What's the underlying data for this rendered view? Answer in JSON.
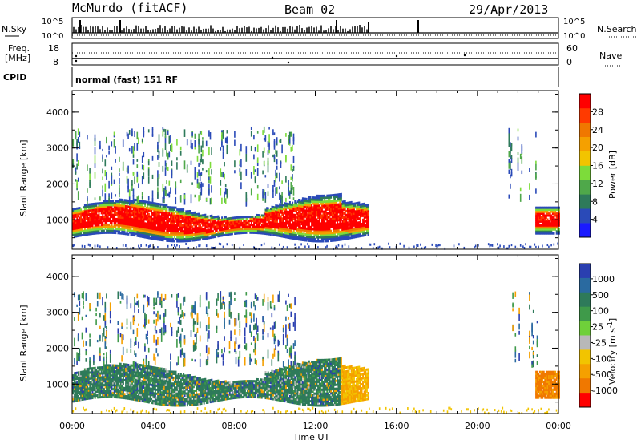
{
  "header": {
    "station": "McMurdo (fitACF)",
    "beam": "Beam 02",
    "date": "29/Apr/2013"
  },
  "panels": {
    "nsky": {
      "left_label": "N.Sky",
      "right_label": "N.Search",
      "tick_top": "10^5",
      "tick_bottom": "10^0"
    },
    "freq": {
      "left_label_1": "Freq.",
      "left_label_2": "[MHz]",
      "right_label": "Nave",
      "left_ticks": [
        "18",
        "8"
      ],
      "right_ticks": [
        "60",
        "0"
      ]
    },
    "cpid": {
      "label": "CPID",
      "mode": "normal (fast) 151 RF"
    }
  },
  "chart_data": [
    {
      "type": "heatmap",
      "name": "power-panel",
      "ylabel": "Slant Range [km]",
      "yticks": [
        "1000",
        "2000",
        "3000",
        "4000"
      ],
      "ylim": [
        180,
        4600
      ],
      "x_ticks": [
        "00:00",
        "04:00",
        "08:00",
        "12:00",
        "16:00",
        "20:00",
        "00:00"
      ],
      "xlim": [
        0,
        24
      ],
      "colorbar": {
        "label": "Power [dB]",
        "ticks": [
          "4",
          "8",
          "12",
          "16",
          "20",
          "24",
          "28"
        ],
        "range": [
          0,
          32
        ],
        "colors": [
          "#1a1aff",
          "#2a4ab8",
          "#2e7a5a",
          "#4fa84a",
          "#7ddc3a",
          "#f2c400",
          "#f5a000",
          "#f07800",
          "#ff3a00",
          "#ff0000"
        ]
      }
    },
    {
      "type": "heatmap",
      "name": "velocity-panel",
      "ylabel": "Slant Range [km]",
      "yticks": [
        "1000",
        "2000",
        "3000",
        "4000"
      ],
      "ylim": [
        180,
        4600
      ],
      "x_ticks": [
        "00:00",
        "04:00",
        "08:00",
        "12:00",
        "16:00",
        "20:00",
        "00:00"
      ],
      "xlim": [
        0,
        24
      ],
      "xlabel": "Time UT",
      "colorbar": {
        "label": "Velocity [m s",
        "label_sup": "-1",
        "label_end": "]",
        "ticks": [
          "1000",
          "500",
          "100",
          "25",
          "-25",
          "-100",
          "-500",
          "-1000"
        ],
        "colors": [
          "#2a3fb0",
          "#2a6aa0",
          "#2e7a5a",
          "#3f9a4a",
          "#6fd03a",
          "#b8b8b8",
          "#f2c400",
          "#f5a000",
          "#f07800",
          "#ff0000"
        ]
      }
    }
  ]
}
